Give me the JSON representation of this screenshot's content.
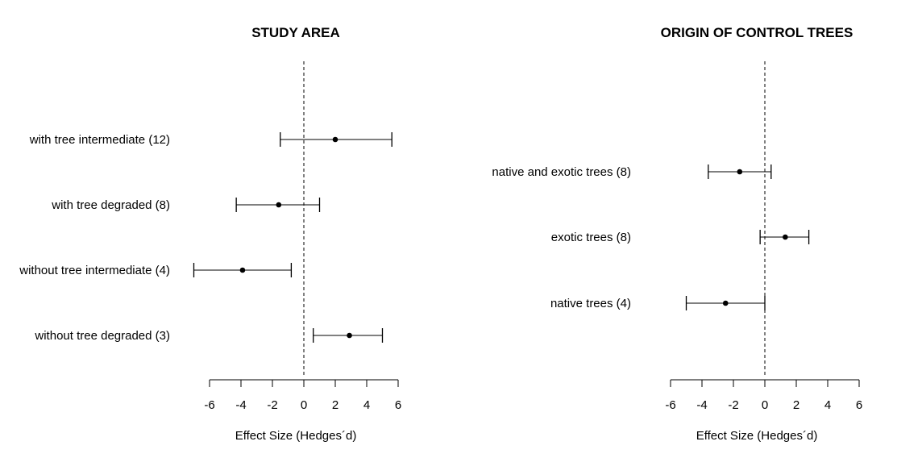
{
  "chart_data": [
    {
      "type": "forest",
      "title": "STUDY AREA",
      "xlabel": "Effect Size (Hedges´d)",
      "xlim": [
        -6,
        6
      ],
      "xticks": [
        -6,
        -4,
        -2,
        0,
        2,
        4,
        6
      ],
      "reference_line": 0,
      "rows": [
        {
          "label": "with tree intermediate (12)",
          "estimate": 2.0,
          "lower": -1.5,
          "upper": 5.6
        },
        {
          "label": "with tree degraded (8)",
          "estimate": -1.6,
          "lower": -4.3,
          "upper": 1.0
        },
        {
          "label": "without tree intermediate (4)",
          "estimate": -3.9,
          "lower": -7.0,
          "upper": -0.8
        },
        {
          "label": "without tree degraded (3)",
          "estimate": 2.9,
          "lower": 0.6,
          "upper": 5.0
        }
      ]
    },
    {
      "type": "forest",
      "title": "ORIGIN OF CONTROL TREES",
      "xlabel": "Effect Size (Hedges´d)",
      "xlim": [
        -6,
        6
      ],
      "xticks": [
        -6,
        -4,
        -2,
        0,
        2,
        4,
        6
      ],
      "reference_line": 0,
      "rows": [
        {
          "label": "native and exotic trees (8)",
          "estimate": -1.6,
          "lower": -3.6,
          "upper": 0.4
        },
        {
          "label": "exotic trees (8)",
          "estimate": 1.3,
          "lower": -0.3,
          "upper": 2.8
        },
        {
          "label": "native trees (4)",
          "estimate": -2.5,
          "lower": -5.0,
          "upper": 0.0
        }
      ]
    }
  ]
}
